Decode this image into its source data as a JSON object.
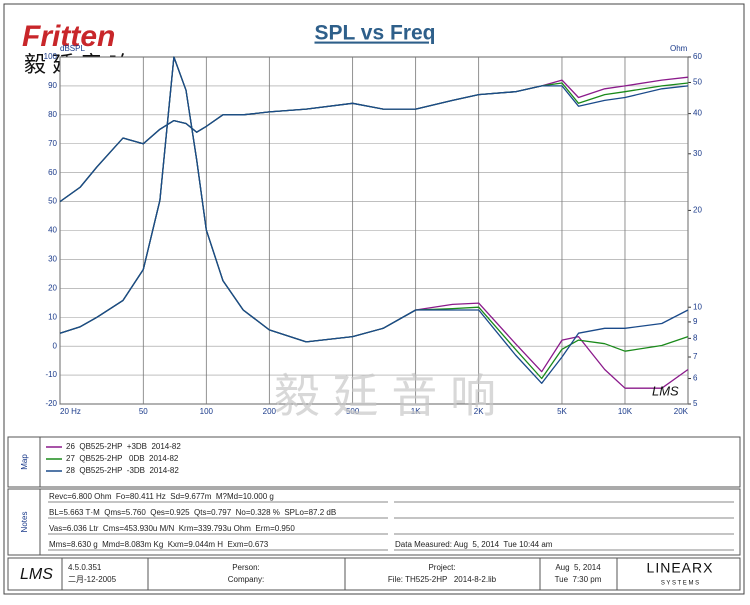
{
  "logo": {
    "brand": "Fritten",
    "chinese": "毅 廷 音 响"
  },
  "watermark": "毅 廷 音 响",
  "plot_stamp": "LMS",
  "chart_data": {
    "type": "line",
    "title": "SPL vs Freq",
    "y_label": "dBSPL",
    "y2_label": "Ohm",
    "x": [
      20,
      25,
      30,
      40,
      50,
      60,
      70,
      80,
      90,
      100,
      120,
      150,
      200,
      300,
      500,
      700,
      1000,
      1500,
      2000,
      3000,
      4000,
      5000,
      6000,
      8000,
      10000,
      15000,
      20000
    ],
    "xlim": [
      20,
      20000
    ],
    "xscale": "log",
    "xticks": [
      {
        "value": 20,
        "label": "20 Hz"
      },
      50,
      100,
      200,
      500,
      {
        "value": 1000,
        "label": "1K"
      },
      {
        "value": 2000,
        "label": "2K"
      },
      {
        "value": 5000,
        "label": "5K"
      },
      {
        "value": 10000,
        "label": "10K"
      },
      {
        "value": 20000,
        "label": "20K"
      }
    ],
    "ylim": [
      -20,
      100
    ],
    "yticks": [
      -20,
      -10,
      0,
      10,
      20,
      30,
      40,
      50,
      60,
      70,
      80,
      90,
      100
    ],
    "y2lim": [
      5,
      60
    ],
    "y2scale": "log",
    "y2ticks": [
      5,
      6,
      7,
      8,
      9,
      10,
      20,
      30,
      40,
      50,
      60
    ],
    "grid": true,
    "series": [
      {
        "name": "26  QB525-2HP  +3DB  2014-82",
        "color": "#8b1a8b",
        "values": [
          50,
          55,
          62,
          72,
          70,
          75,
          78,
          77,
          74,
          76,
          80,
          80,
          81,
          82,
          84,
          82,
          82,
          85,
          87,
          88,
          90,
          92,
          86,
          89,
          90,
          92,
          93
        ]
      },
      {
        "name": "27  QB525-2HP   0DB  2014-82",
        "color": "#1a8a1a",
        "values": [
          50,
          55,
          62,
          72,
          70,
          75,
          78,
          77,
          74,
          76,
          80,
          80,
          81,
          82,
          84,
          82,
          82,
          85,
          87,
          88,
          90,
          91,
          84,
          87,
          88,
          90,
          91
        ]
      },
      {
        "name": "28  QB525-2HP  -3DB  2014-82",
        "color": "#1a4a8a",
        "values": [
          50,
          55,
          62,
          72,
          70,
          75,
          78,
          77,
          74,
          76,
          80,
          80,
          81,
          82,
          84,
          82,
          82,
          85,
          87,
          88,
          90,
          90,
          83,
          85,
          86,
          89,
          90
        ]
      },
      {
        "color": "#8b1a8b",
        "axis": "y2",
        "values": [
          8.3,
          8.7,
          9.3,
          10.5,
          13.1,
          21.5,
          60,
          47.3,
          28.7,
          17.4,
          12.1,
          9.8,
          8.5,
          7.8,
          8.1,
          8.6,
          9.8,
          10.2,
          10.3,
          7.7,
          6.3,
          7.9,
          8.1,
          6.4,
          5.6,
          5.6,
          6.4
        ]
      },
      {
        "color": "#1a8a1a",
        "axis": "y2",
        "values": [
          8.3,
          8.7,
          9.3,
          10.5,
          13.1,
          21.5,
          60,
          47.3,
          28.7,
          17.4,
          12.1,
          9.8,
          8.5,
          7.8,
          8.1,
          8.6,
          9.8,
          9.9,
          10.0,
          7.4,
          6.0,
          7.4,
          7.9,
          7.7,
          7.3,
          7.6,
          8.1
        ]
      },
      {
        "color": "#1a4a8a",
        "axis": "y2",
        "values": [
          8.3,
          8.7,
          9.3,
          10.5,
          13.1,
          21.5,
          60,
          47.3,
          28.7,
          17.4,
          12.1,
          9.8,
          8.5,
          7.8,
          8.1,
          8.6,
          9.8,
          9.8,
          9.8,
          7.1,
          5.8,
          7.0,
          8.3,
          8.6,
          8.6,
          8.9,
          9.8
        ]
      }
    ]
  },
  "map": {
    "label": "Map"
  },
  "notes": {
    "label": "Notes",
    "lines": [
      "Revc=6.800 Ohm  Fo=80.411 Hz  Sd=9.677m  M?Md=10.000 g",
      "BL=5.663 T·M  Qms=5.760  Qes=0.925  Qts=0.797  No=0.328 %  SPLo=87.2 dB",
      "Vas=6.036 Ltr  Cms=453.930u M/N  Krm=339.793u Ohm  Erm=0.950",
      "Mms=8.630 g  Mmd=8.083m Kg  Kxm=9.044m H  Exm=0.673"
    ],
    "measured": "Data Measured: Aug  5, 2014  Tue 10:44 am"
  },
  "footer": {
    "logo": "LMS",
    "version": "4.5.0.351",
    "build_date": "二月-12-2005",
    "person": "Person:",
    "company": "Company:",
    "project": "Project:",
    "file": "File: TH525-2HP   2014-8-2.lib",
    "date": "Aug  5, 2014",
    "time": "Tue  7:30 pm",
    "brand": "LINEARX",
    "brand_sub": "S Y S T E M S"
  }
}
